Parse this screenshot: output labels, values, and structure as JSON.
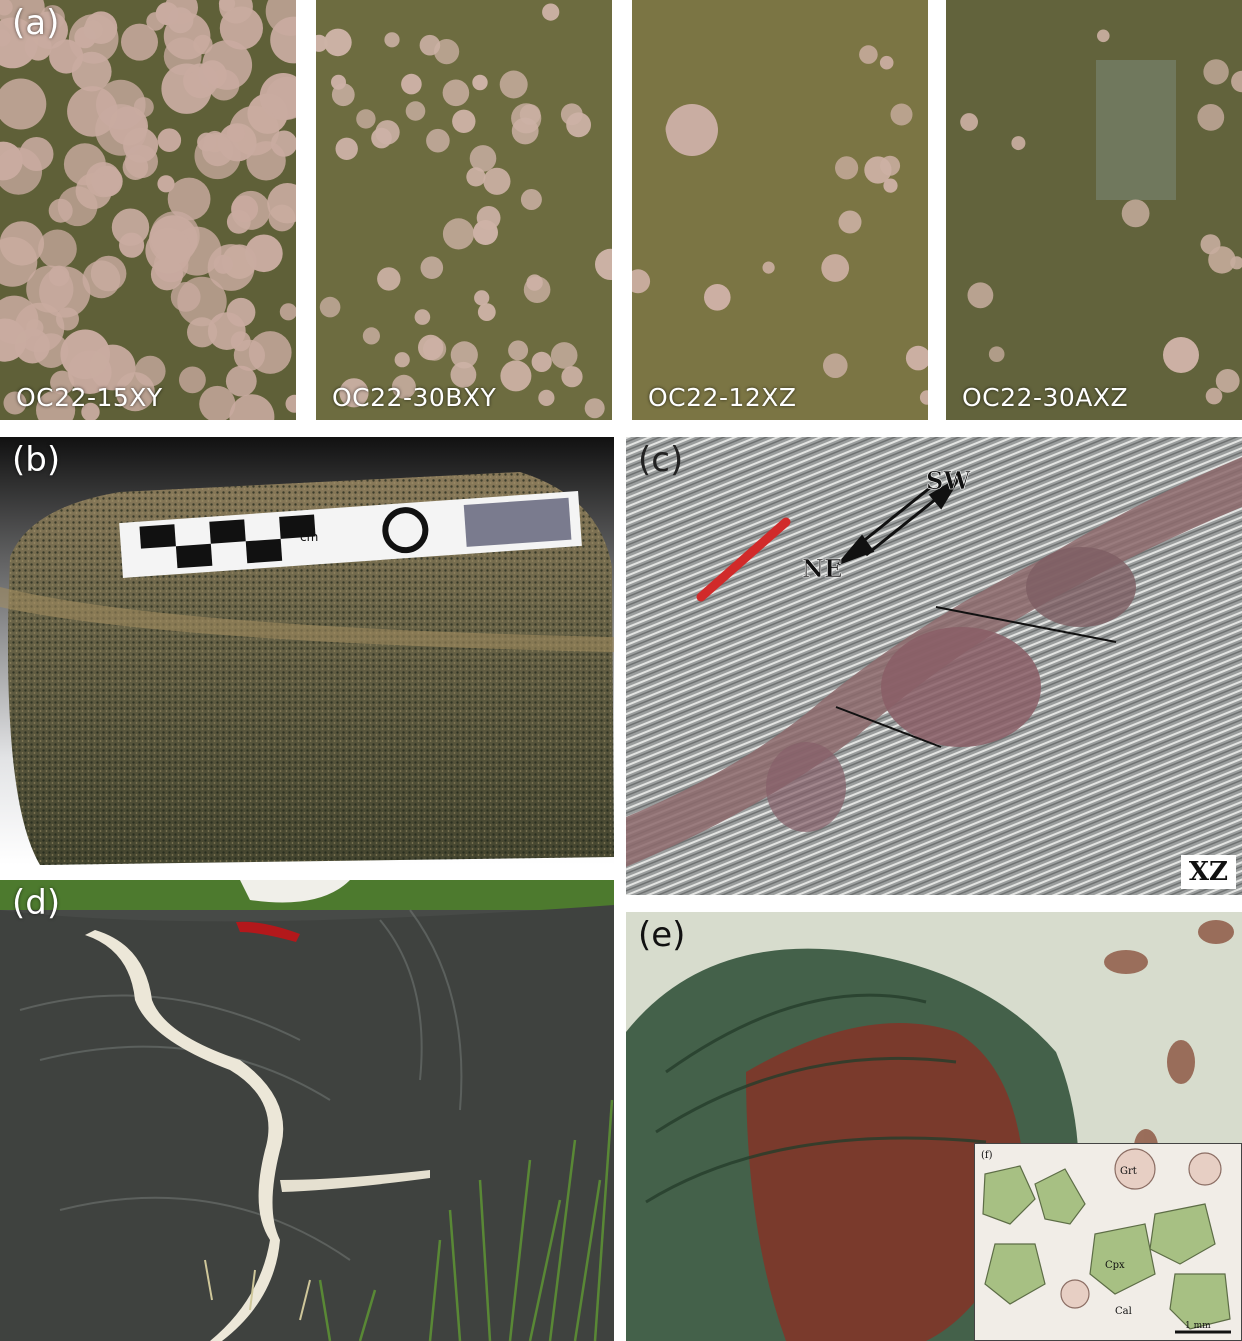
{
  "panels": {
    "a": {
      "label": "(a)",
      "samples": [
        "OC22-15XY",
        "OC22-30BXY",
        "OC22-12XZ",
        "OC22-30AXZ"
      ]
    },
    "b": {
      "label": "(b)",
      "scale_unit": "cm"
    },
    "c": {
      "label": "(c)",
      "dir_ne": "NE",
      "dir_sw": "SW",
      "plane": "XZ"
    },
    "d": {
      "label": "(d)"
    },
    "e": {
      "label": "(e)"
    },
    "f": {
      "label": "(f)",
      "mineral_grt": "Grt",
      "mineral_cpx": "Cpx",
      "mineral_cal": "Cal",
      "scale_bar": "1 mm"
    }
  },
  "colors": {
    "thin_section_matrix": "#6b6a3e",
    "garnet_pink": "#c9aaa0",
    "rock_gray": "#5c5f58",
    "vein_white": "#ede9dc",
    "grass_green": "#4f7d2c",
    "red_band": "#8a5a5e"
  }
}
